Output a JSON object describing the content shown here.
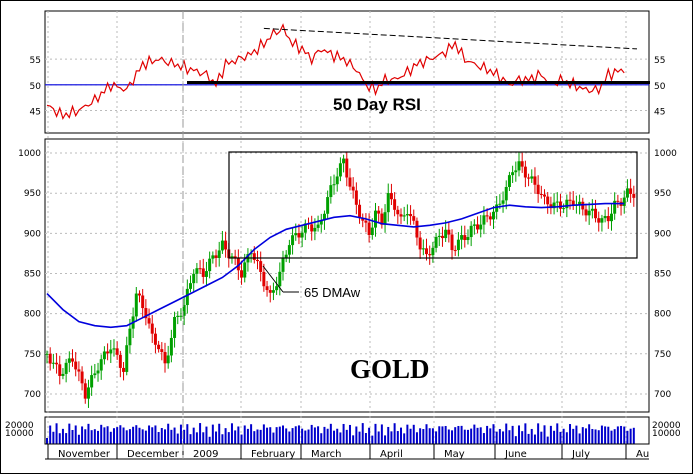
{
  "chart_data": {
    "type": "candlestick",
    "title": "GOLD",
    "annotations": {
      "rsi_label": "50 Day RSI",
      "dma_label": "65 DMAw"
    },
    "months": [
      "November",
      "December",
      "2009",
      "February",
      "March",
      "April",
      "May",
      "June",
      "July",
      "Au"
    ],
    "price_panel": {
      "ylim": [
        680,
        1015
      ],
      "ticks": [
        700,
        750,
        800,
        850,
        900,
        950,
        1000
      ],
      "series_colors": {
        "up": "#00a000",
        "down": "#e00000",
        "dma": "#0000dd"
      },
      "price_path": [
        [
          0,
          750
        ],
        [
          8,
          725
        ],
        [
          16,
          745
        ],
        [
          24,
          700
        ],
        [
          32,
          735
        ],
        [
          40,
          760
        ],
        [
          48,
          730
        ],
        [
          52,
          780
        ],
        [
          56,
          825
        ],
        [
          62,
          800
        ],
        [
          66,
          770
        ],
        [
          70,
          760
        ],
        [
          74,
          735
        ],
        [
          80,
          790
        ],
        [
          86,
          810
        ],
        [
          92,
          855
        ],
        [
          98,
          850
        ],
        [
          104,
          870
        ],
        [
          110,
          885
        ],
        [
          116,
          870
        ],
        [
          122,
          850
        ],
        [
          128,
          880
        ],
        [
          134,
          850
        ],
        [
          140,
          820
        ],
        [
          146,
          850
        ],
        [
          152,
          890
        ],
        [
          158,
          900
        ],
        [
          164,
          910
        ],
        [
          170,
          905
        ],
        [
          174,
          930
        ],
        [
          178,
          955
        ],
        [
          182,
          975
        ],
        [
          186,
          990
        ],
        [
          190,
          960
        ],
        [
          194,
          935
        ],
        [
          198,
          915
        ],
        [
          202,
          900
        ],
        [
          206,
          925
        ],
        [
          210,
          915
        ],
        [
          214,
          945
        ],
        [
          218,
          935
        ],
        [
          222,
          915
        ],
        [
          226,
          930
        ],
        [
          230,
          910
        ],
        [
          234,
          885
        ],
        [
          238,
          870
        ],
        [
          242,
          885
        ],
        [
          246,
          895
        ],
        [
          250,
          905
        ],
        [
          254,
          880
        ],
        [
          258,
          890
        ],
        [
          262,
          895
        ],
        [
          266,
          905
        ],
        [
          270,
          910
        ],
        [
          276,
          920
        ],
        [
          282,
          930
        ],
        [
          288,
          955
        ],
        [
          292,
          980
        ],
        [
          296,
          985
        ],
        [
          300,
          975
        ],
        [
          304,
          965
        ],
        [
          308,
          955
        ],
        [
          312,
          940
        ],
        [
          318,
          935
        ],
        [
          324,
          935
        ],
        [
          330,
          940
        ],
        [
          336,
          930
        ],
        [
          342,
          925
        ],
        [
          348,
          915
        ],
        [
          352,
          920
        ],
        [
          356,
          935
        ],
        [
          360,
          940
        ],
        [
          364,
          950
        ],
        [
          370,
          950
        ]
      ],
      "dma_path": [
        [
          0,
          825
        ],
        [
          10,
          805
        ],
        [
          20,
          790
        ],
        [
          30,
          785
        ],
        [
          40,
          783
        ],
        [
          50,
          785
        ],
        [
          60,
          795
        ],
        [
          70,
          805
        ],
        [
          80,
          815
        ],
        [
          90,
          825
        ],
        [
          100,
          835
        ],
        [
          110,
          845
        ],
        [
          120,
          860
        ],
        [
          130,
          880
        ],
        [
          140,
          895
        ],
        [
          150,
          905
        ],
        [
          160,
          910
        ],
        [
          170,
          915
        ],
        [
          180,
          920
        ],
        [
          190,
          922
        ],
        [
          200,
          918
        ],
        [
          210,
          912
        ],
        [
          220,
          910
        ],
        [
          230,
          908
        ],
        [
          240,
          910
        ],
        [
          250,
          913
        ],
        [
          260,
          918
        ],
        [
          270,
          925
        ],
        [
          280,
          932
        ],
        [
          290,
          935
        ],
        [
          300,
          933
        ],
        [
          310,
          932
        ],
        [
          320,
          933
        ],
        [
          330,
          935
        ],
        [
          340,
          936
        ],
        [
          350,
          937
        ],
        [
          362,
          937
        ]
      ]
    },
    "rsi_panel": {
      "ylim": [
        41,
        64
      ],
      "ticks": [
        45,
        50,
        55
      ],
      "level": 50,
      "color": "#e00000",
      "path": [
        [
          0,
          46
        ],
        [
          10,
          44
        ],
        [
          20,
          45
        ],
        [
          30,
          47
        ],
        [
          40,
          50
        ],
        [
          50,
          49
        ],
        [
          60,
          54
        ],
        [
          70,
          55
        ],
        [
          80,
          54
        ],
        [
          90,
          53
        ],
        [
          100,
          52
        ],
        [
          106,
          50
        ],
        [
          112,
          54
        ],
        [
          120,
          55
        ],
        [
          128,
          56
        ],
        [
          136,
          58
        ],
        [
          142,
          60
        ],
        [
          148,
          61
        ],
        [
          154,
          58
        ],
        [
          160,
          57
        ],
        [
          166,
          55
        ],
        [
          172,
          57
        ],
        [
          178,
          56
        ],
        [
          186,
          55
        ],
        [
          194,
          53
        ],
        [
          200,
          50
        ],
        [
          206,
          49
        ],
        [
          212,
          51
        ],
        [
          218,
          51
        ],
        [
          224,
          52
        ],
        [
          232,
          54
        ],
        [
          240,
          55
        ],
        [
          248,
          56
        ],
        [
          256,
          58
        ],
        [
          262,
          55
        ],
        [
          268,
          54
        ],
        [
          276,
          53
        ],
        [
          282,
          52
        ],
        [
          290,
          50
        ],
        [
          296,
          51
        ],
        [
          302,
          51
        ],
        [
          310,
          52
        ],
        [
          316,
          50
        ],
        [
          322,
          51
        ],
        [
          330,
          50
        ],
        [
          338,
          49
        ],
        [
          346,
          49
        ],
        [
          352,
          52
        ],
        [
          362,
          53
        ]
      ],
      "trend_start": [
        136,
        61
      ],
      "trend_end": [
        370,
        57
      ]
    },
    "volume_panel": {
      "ticks": [
        "20000",
        "10000"
      ]
    }
  }
}
